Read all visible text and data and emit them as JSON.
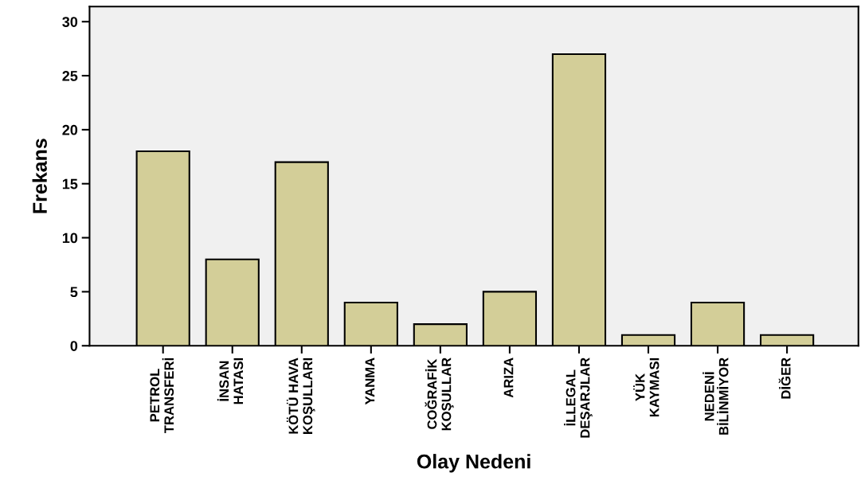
{
  "chart_data": {
    "type": "bar",
    "xlabel": "Olay Nedeni",
    "ylabel": "Frekans",
    "categories": [
      "PETROL\nTRANSFERİ",
      "İNSAN\nHATASI",
      "KÖTÜ HAVA\nKOŞULLARI",
      "YANMA",
      "COĞRAFİK\nKOŞULLAR",
      "ARIZA",
      "İLLEGAL\nDEŞARJLAR",
      "YÜK\nKAYMASI",
      "NEDENİ\nBİLİNMİYOR",
      "DİĞER"
    ],
    "values": [
      18,
      8,
      17,
      4,
      2,
      5,
      27,
      1,
      4,
      1
    ],
    "color": "#d3ce98",
    "ylim": [
      0,
      31.4
    ],
    "yticks": [
      0,
      5,
      10,
      15,
      20,
      25,
      30
    ],
    "grid": false,
    "legend": false
  }
}
